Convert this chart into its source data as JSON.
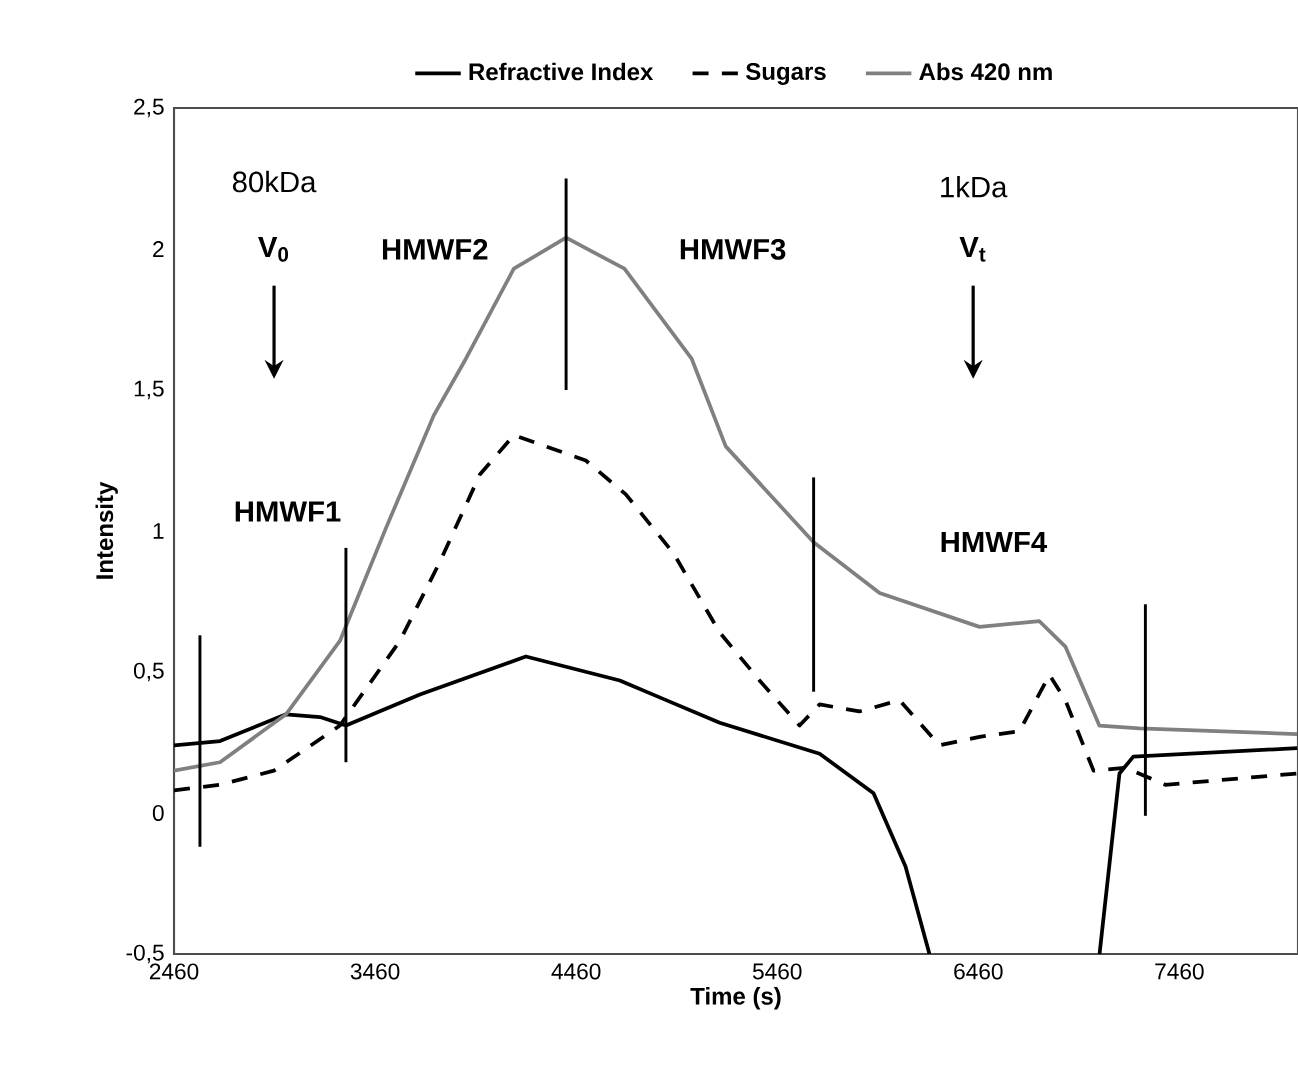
{
  "chart_data": {
    "type": "line",
    "xlabel": "Time (s)",
    "ylabel": "Intensity",
    "xlim": [
      2460,
      8050
    ],
    "ylim": [
      -0.5,
      2.5
    ],
    "xticks": [
      2460,
      3460,
      4460,
      5460,
      6460,
      7460
    ],
    "yticks": [
      {
        "value": -0.5,
        "label": "-0,5"
      },
      0,
      {
        "value": 0.5,
        "label": "0,5"
      },
      1,
      {
        "value": 1.5,
        "label": "1,5"
      },
      2,
      {
        "value": 2.5,
        "label": "2,5"
      }
    ],
    "legend": "top",
    "marker": "none",
    "series": [
      {
        "name": "Refractive Index",
        "color": "#000000",
        "line_style": "solid",
        "x": [
          2460,
          2689,
          3017,
          3186,
          3315,
          3683,
          4210,
          4677,
          4875,
          5174,
          5671,
          5939,
          6098,
          6217,
          6218,
          7062,
          7063,
          7162,
          7231,
          8046
        ],
        "values": [
          0.24,
          0.255,
          0.35,
          0.34,
          0.31,
          0.42,
          0.555,
          0.47,
          0.41,
          0.32,
          0.21,
          0.07,
          -0.19,
          -0.5,
          null,
          null,
          -0.5,
          0.14,
          0.2,
          0.23
        ]
      },
      {
        "name": "Sugars",
        "color": "#000000",
        "line_style": "dashed",
        "x": [
          2460,
          2689,
          2957,
          3285,
          3583,
          3782,
          3981,
          4150,
          4508,
          4707,
          4945,
          5174,
          5372,
          5571,
          5671,
          5869,
          6068,
          6267,
          6466,
          6665,
          6814,
          6893,
          7033,
          7192,
          7390,
          8046
        ],
        "values": [
          0.08,
          0.1,
          0.15,
          0.31,
          0.61,
          0.89,
          1.2,
          1.34,
          1.25,
          1.13,
          0.92,
          0.64,
          0.47,
          0.31,
          0.385,
          0.36,
          0.4,
          0.24,
          0.27,
          0.29,
          0.49,
          0.4,
          0.15,
          0.16,
          0.1,
          0.14
        ]
      },
      {
        "name": "Abs 420 nm",
        "color": "#808080",
        "line_style": "solid",
        "x": [
          2460,
          2689,
          3017,
          3285,
          3514,
          3752,
          3911,
          4150,
          4410,
          4700,
          5035,
          5204,
          5641,
          5969,
          6466,
          6764,
          6893,
          7062,
          7261,
          8046
        ],
        "values": [
          0.15,
          0.18,
          0.35,
          0.61,
          1.01,
          1.41,
          1.61,
          1.93,
          2.04,
          1.93,
          1.61,
          1.3,
          0.96,
          0.78,
          0.66,
          0.68,
          0.59,
          0.31,
          0.3,
          0.28
        ]
      },
      {
        "type": "line",
        "color": "#000000",
        "line_style": "solid",
        "x": [
          2589,
          2589
        ],
        "values": [
          0.63,
          -0.12
        ]
      },
      {
        "type": "line",
        "color": "#000000",
        "line_style": "solid",
        "x": [
          3315,
          3315
        ],
        "values": [
          0.94,
          0.18
        ]
      },
      {
        "type": "line",
        "color": "#000000",
        "line_style": "solid",
        "x": [
          4410,
          4410
        ],
        "values": [
          2.25,
          1.5
        ]
      },
      {
        "type": "line",
        "color": "#000000",
        "line_style": "solid",
        "x": [
          5641,
          5641
        ],
        "values": [
          1.19,
          0.43
        ]
      },
      {
        "type": "line",
        "color": "#000000",
        "line_style": "solid",
        "x": [
          7291,
          7291
        ],
        "values": [
          0.74,
          -0.01
        ]
      }
    ],
    "annotations": [
      "80kDa",
      "V$_{0}$",
      "HMWF2",
      "HMWF3",
      "1kDa",
      "V$_{t}$",
      "HMWF1",
      "HMWF4"
    ]
  }
}
